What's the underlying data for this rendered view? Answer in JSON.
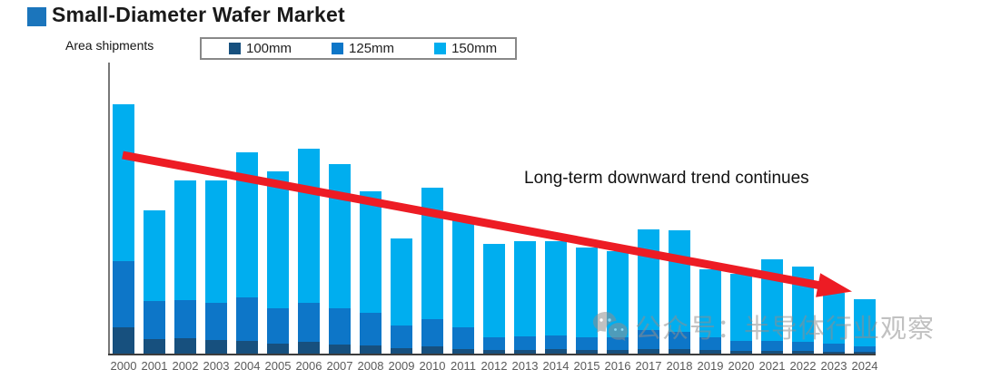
{
  "header": {
    "title": "Small-Diameter Wafer Market"
  },
  "colors": {
    "title_bullet": "#1B75BC",
    "accent_red": "#ED1C24",
    "axis_gray": "#787878",
    "baseline_dark": "#3C3C3C",
    "tick_label_gray": "#5A5A5A",
    "watermark_gray": "#8F8F8F",
    "series_100mm": "#17507E",
    "series_125mm": "#0D76C8",
    "series_150mm": "#00AEEF"
  },
  "watermark": {
    "text": "公众号：半导体行业观察",
    "icon": "wechat-icon"
  },
  "chart_data": {
    "type": "bar",
    "stacked": true,
    "title": "Small-Diameter Wafer Market",
    "ylabel": "Area shipments",
    "xlabel": "",
    "grid": false,
    "legend_position": "top",
    "annotation": "Long-term downward trend continues",
    "trend_arrow": {
      "direction": "down",
      "color": "#ED1C24"
    },
    "units": "relative area-shipment index (chart shows no numeric axis; values estimated from bar heights, 2000 total ≈ 276)",
    "categories": [
      2000,
      2001,
      2002,
      2003,
      2004,
      2005,
      2006,
      2007,
      2008,
      2009,
      2010,
      2011,
      2012,
      2013,
      2014,
      2015,
      2016,
      2017,
      2018,
      2019,
      2020,
      2021,
      2022,
      2023,
      2024
    ],
    "series": [
      {
        "name": "100mm",
        "color": "#17507E",
        "values": [
          30,
          17,
          18,
          16,
          15,
          12,
          14,
          11,
          10,
          7,
          9,
          6,
          5,
          5,
          6,
          5,
          5,
          6,
          6,
          5,
          4,
          4,
          4,
          3,
          3
        ]
      },
      {
        "name": "125mm",
        "color": "#0D76C8",
        "values": [
          73,
          42,
          42,
          41,
          48,
          39,
          43,
          40,
          36,
          25,
          30,
          24,
          14,
          15,
          15,
          14,
          14,
          21,
          19,
          14,
          11,
          11,
          10,
          9,
          6
        ]
      },
      {
        "name": "150mm",
        "color": "#00AEEF",
        "values": [
          173,
          100,
          132,
          135,
          160,
          151,
          170,
          159,
          134,
          96,
          145,
          119,
          103,
          105,
          104,
          99,
          95,
          111,
          112,
          75,
          74,
          90,
          83,
          56,
          52
        ]
      }
    ],
    "totals_estimated": [
      276,
      159,
      192,
      192,
      223,
      202,
      227,
      210,
      180,
      128,
      184,
      149,
      122,
      125,
      125,
      118,
      114,
      138,
      137,
      94,
      89,
      105,
      97,
      68,
      61
    ]
  }
}
